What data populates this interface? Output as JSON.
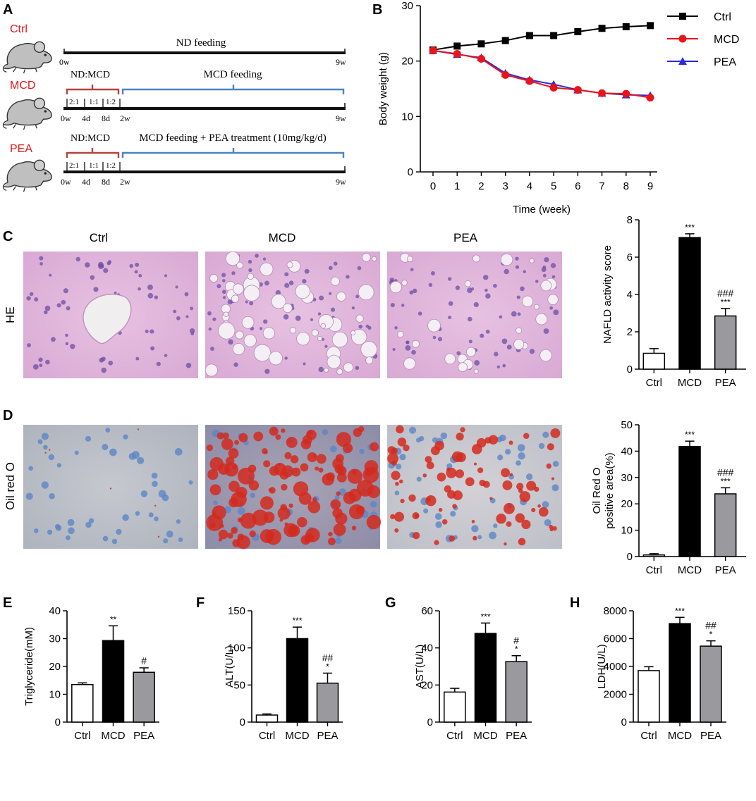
{
  "panel_labels": {
    "A": "A",
    "B": "B",
    "C": "C",
    "D": "D",
    "E": "E",
    "F": "F",
    "G": "G",
    "H": "H"
  },
  "protocol": {
    "groups": [
      {
        "name": "Ctrl",
        "label_color": "#e8141a",
        "bar_label": "ND feeding",
        "ticks": [
          "0w",
          "9w"
        ]
      },
      {
        "name": "MCD",
        "label_color": "#e8141a",
        "bracket_label": "ND:MCD",
        "ratio_labels": [
          "2:1",
          "1:1",
          "1:2"
        ],
        "bar_label": "MCD feeding",
        "ticks": [
          "0w",
          "4d",
          "8d",
          "2w",
          "9w"
        ]
      },
      {
        "name": "PEA",
        "label_color": "#e8141a",
        "bracket_label": "ND:MCD",
        "ratio_labels": [
          "2:1",
          "1:1",
          "1:2"
        ],
        "bar_label": "MCD feeding + PEA treatment (10mg/kg/d)",
        "ticks": [
          "0w",
          "4d",
          "8d",
          "2w",
          "9w"
        ]
      }
    ],
    "colors": {
      "adapt_bracket": "#b5423e",
      "feed_bracket": "#4a84c4",
      "timeline": "#111111"
    }
  },
  "histology": {
    "columns": [
      "Ctrl",
      "MCD",
      "PEA"
    ],
    "rows": [
      "HE",
      "Oil red O"
    ]
  },
  "chart_data": [
    {
      "panel": "B",
      "type": "line",
      "title": "",
      "xlabel": "Time (week)",
      "ylabel": "Body weight (g)",
      "x": [
        0,
        1,
        2,
        3,
        4,
        5,
        6,
        7,
        8,
        9
      ],
      "xlim": [
        0,
        9
      ],
      "ylim": [
        0,
        30
      ],
      "yticks": [
        0,
        10,
        20,
        30
      ],
      "grid": false,
      "legend": "right",
      "series": [
        {
          "name": "Ctrl",
          "marker": "square",
          "color": "#000000",
          "values": [
            22.0,
            22.7,
            23.1,
            23.7,
            24.6,
            24.6,
            25.3,
            25.9,
            26.2,
            26.4
          ]
        },
        {
          "name": "MCD",
          "marker": "circle",
          "color": "#e8141a",
          "values": [
            21.9,
            21.3,
            20.4,
            17.5,
            16.4,
            15.2,
            14.8,
            14.2,
            14.1,
            13.4
          ]
        },
        {
          "name": "PEA",
          "marker": "triangle",
          "color": "#2b2bde",
          "values": [
            21.9,
            21.2,
            20.6,
            17.8,
            16.6,
            15.8,
            14.8,
            14.2,
            13.9,
            13.8
          ]
        }
      ]
    },
    {
      "panel": "C",
      "type": "bar",
      "title": "",
      "xlabel": "",
      "ylabel": "NAFLD activity score",
      "categories": [
        "Ctrl",
        "MCD",
        "PEA"
      ],
      "values": [
        0.85,
        7.05,
        2.85
      ],
      "errors": [
        0.25,
        0.2,
        0.4
      ],
      "ylim": [
        0,
        8
      ],
      "yticks": [
        0,
        2,
        4,
        6,
        8
      ],
      "sig_star": [
        "",
        "***",
        "***"
      ],
      "sig_hash": [
        "",
        "",
        "###"
      ]
    },
    {
      "panel": "D",
      "type": "bar",
      "title": "",
      "xlabel": "",
      "ylabel_lines": [
        "Oil Red O",
        "positive area(%)"
      ],
      "categories": [
        "Ctrl",
        "MCD",
        "PEA"
      ],
      "values": [
        0.6,
        41.8,
        23.8
      ],
      "errors": [
        0.5,
        2.0,
        2.3
      ],
      "ylim": [
        0,
        50
      ],
      "yticks": [
        0,
        10,
        20,
        30,
        40,
        50
      ],
      "sig_star": [
        "",
        "***",
        "***"
      ],
      "sig_hash": [
        "",
        "",
        "###"
      ]
    },
    {
      "panel": "E",
      "type": "bar",
      "title": "",
      "xlabel": "",
      "ylabel": "Triglyceride(mM)",
      "categories": [
        "Ctrl",
        "MCD",
        "PEA"
      ],
      "values": [
        13.5,
        29.3,
        17.9
      ],
      "errors": [
        0.6,
        5.3,
        1.6
      ],
      "ylim": [
        0,
        40
      ],
      "yticks": [
        0,
        10,
        20,
        30,
        40
      ],
      "sig_star": [
        "",
        "**",
        ""
      ],
      "sig_hash": [
        "",
        "",
        "#"
      ]
    },
    {
      "panel": "F",
      "type": "bar",
      "title": "",
      "xlabel": "",
      "ylabel": "ALT(U/L)",
      "categories": [
        "Ctrl",
        "MCD",
        "PEA"
      ],
      "values": [
        9.5,
        112.5,
        52.5
      ],
      "errors": [
        1.5,
        15.5,
        13.5
      ],
      "ylim": [
        0,
        150
      ],
      "yticks": [
        0,
        50,
        100,
        150
      ],
      "sig_star": [
        "",
        "***",
        "*"
      ],
      "sig_hash": [
        "",
        "",
        "##"
      ]
    },
    {
      "panel": "G",
      "type": "bar",
      "title": "",
      "xlabel": "",
      "ylabel": "AST(U/L)",
      "categories": [
        "Ctrl",
        "MCD",
        "PEA"
      ],
      "values": [
        16.2,
        47.8,
        32.6
      ],
      "errors": [
        2.0,
        5.6,
        3.2
      ],
      "ylim": [
        0,
        60
      ],
      "yticks": [
        0,
        20,
        40,
        60
      ],
      "sig_star": [
        "",
        "***",
        "*"
      ],
      "sig_hash": [
        "",
        "",
        "#"
      ]
    },
    {
      "panel": "H",
      "type": "bar",
      "title": "",
      "xlabel": "",
      "ylabel": "LDH(U/L)",
      "categories": [
        "Ctrl",
        "MCD",
        "PEA"
      ],
      "values": [
        3700,
        7080,
        5460
      ],
      "errors": [
        280,
        450,
        380
      ],
      "ylim": [
        0,
        8000
      ],
      "yticks": [
        0,
        2000,
        4000,
        6000,
        8000
      ],
      "sig_star": [
        "",
        "***",
        "*"
      ],
      "sig_hash": [
        "",
        "",
        "##"
      ]
    }
  ]
}
